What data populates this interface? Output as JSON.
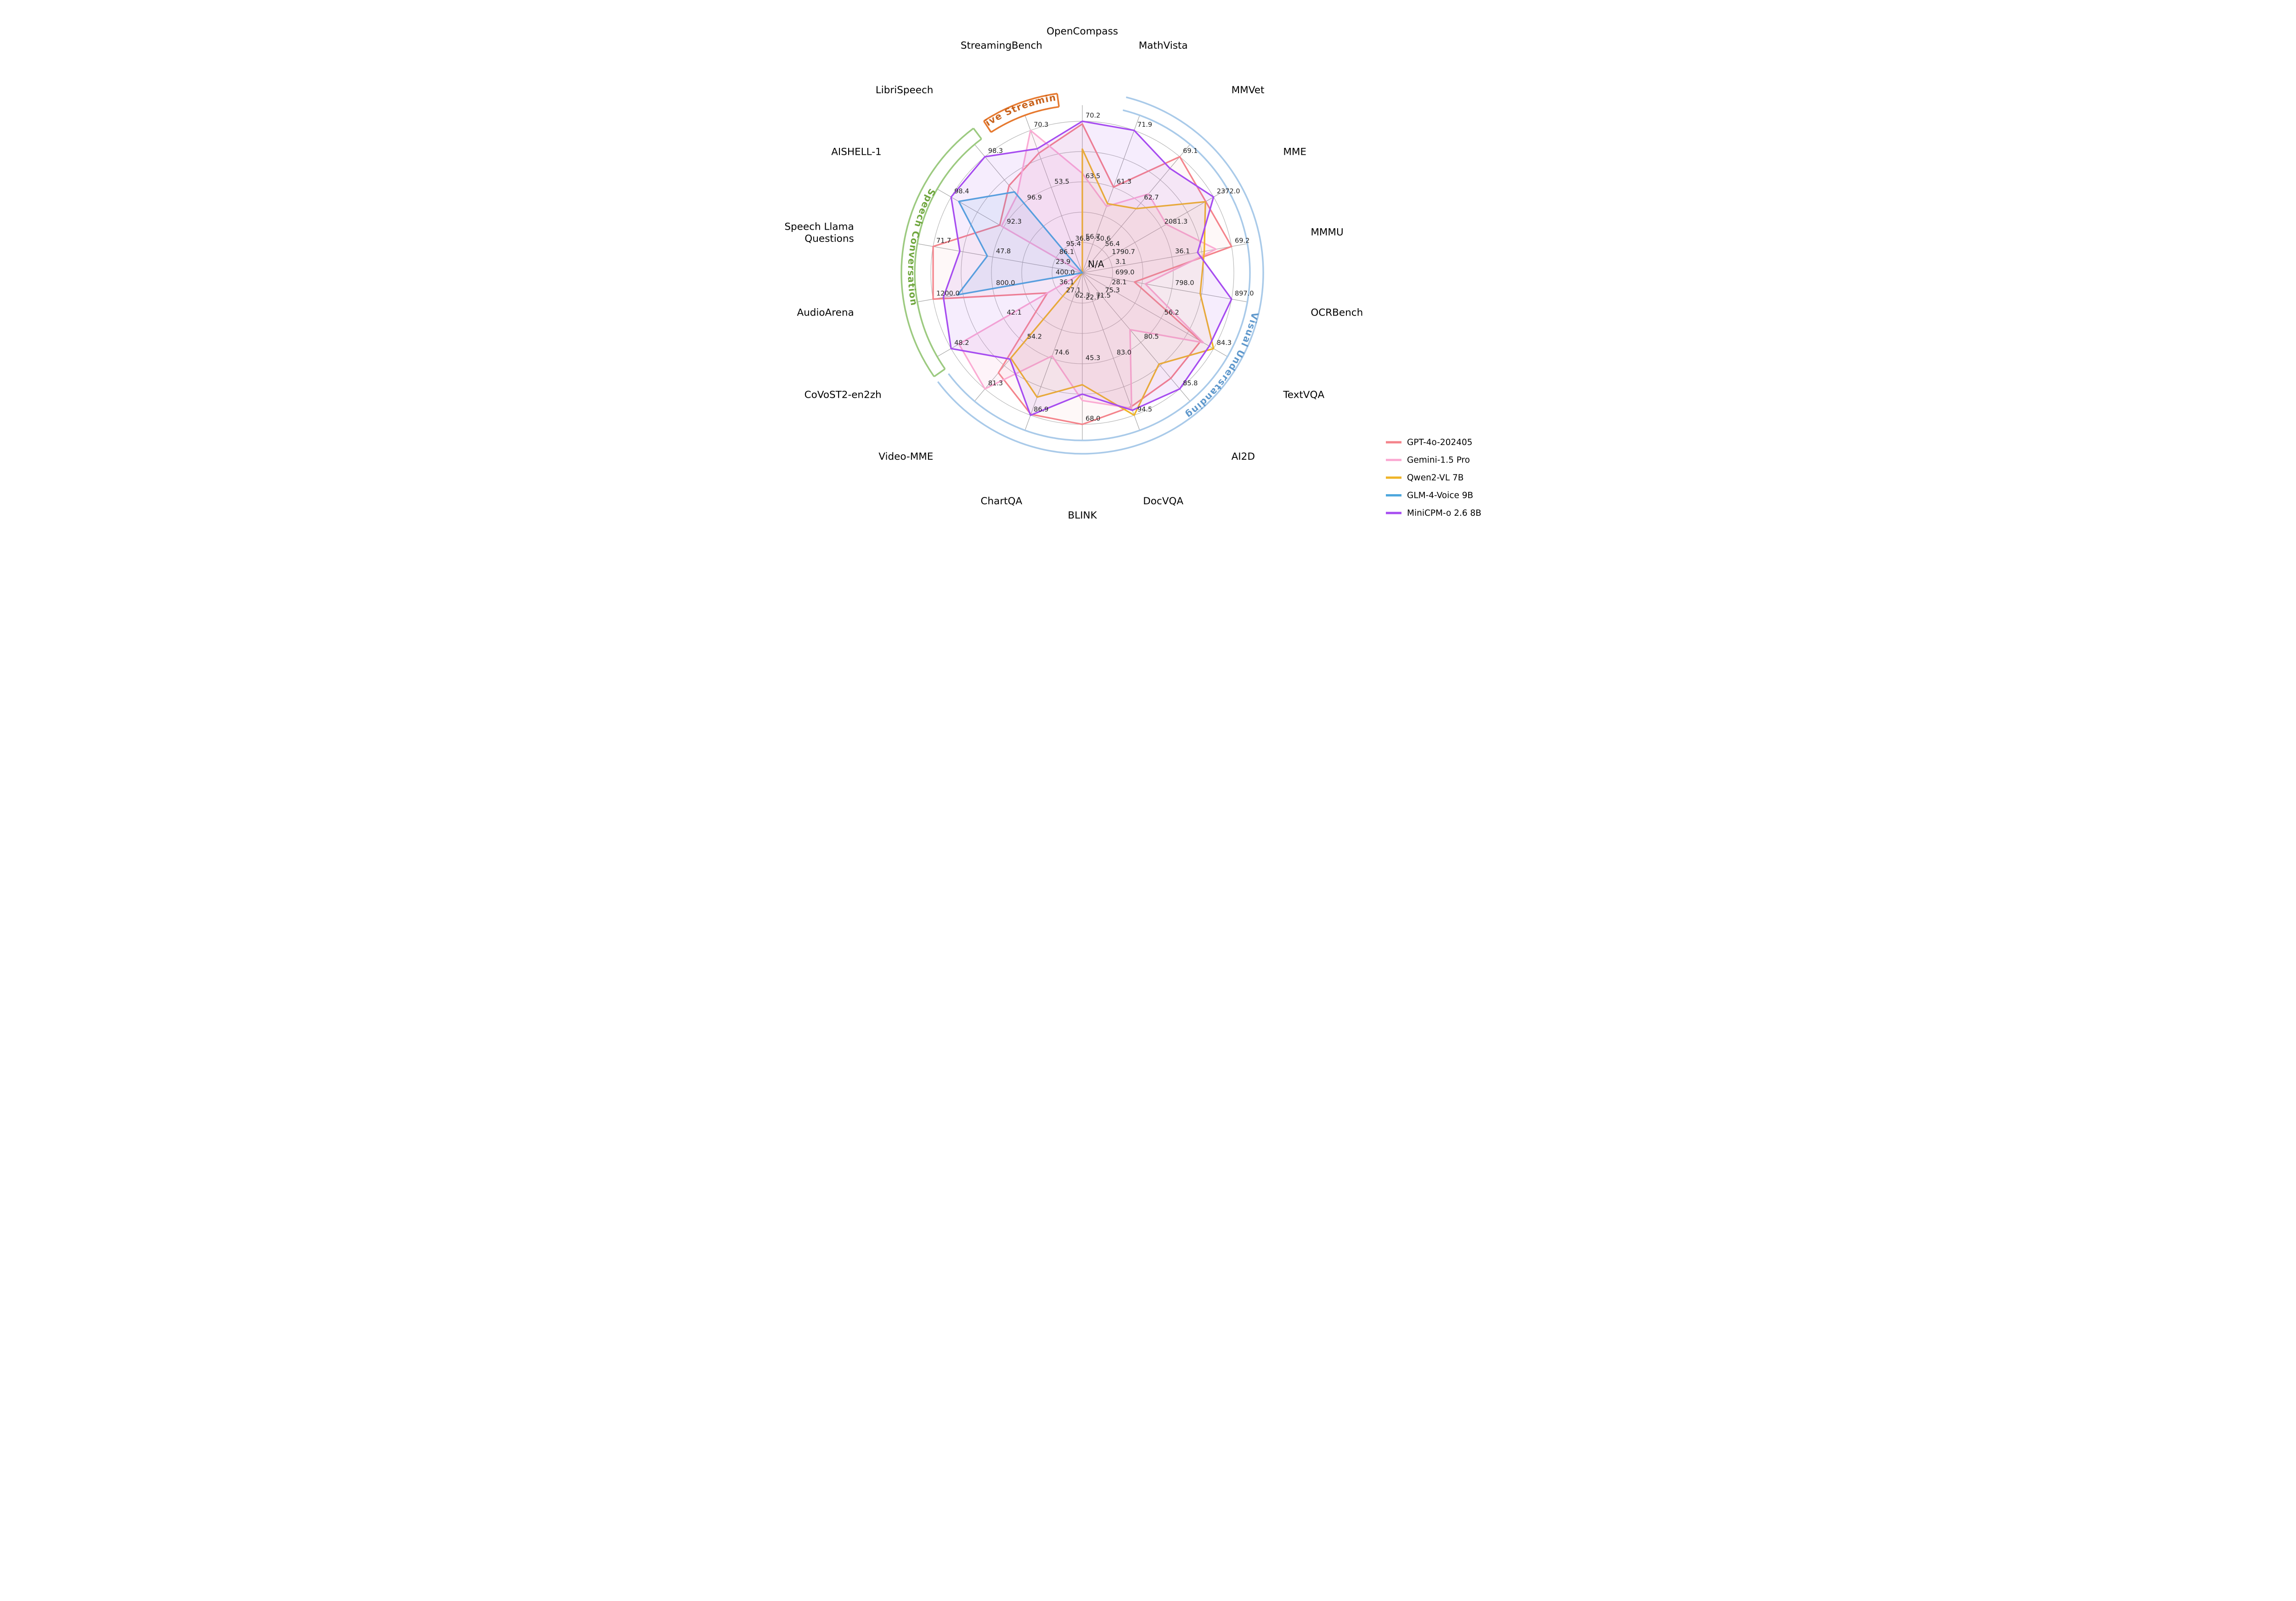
{
  "figure": {
    "background": "#ffffff",
    "center_na_label": "N/A"
  },
  "chart_data": {
    "type": "radar",
    "rings": 5,
    "label_rings": [
      5,
      3,
      1
    ],
    "axes": [
      {
        "name": "OpenCompass",
        "angle_deg": 0,
        "max": 70.2,
        "step_per_ring": 3.375,
        "ring_labels": [
          "70.2",
          "63.5",
          "56.7"
        ]
      },
      {
        "name": "MathVista",
        "angle_deg": 20,
        "max": 71.9,
        "step_per_ring": 5.325,
        "ring_labels": [
          "71.9",
          "61.3",
          "50.6"
        ]
      },
      {
        "name": "MMVet",
        "angle_deg": 40,
        "max": 69.1,
        "step_per_ring": 3.175,
        "ring_labels": [
          "69.1",
          "62.7",
          "56.4"
        ]
      },
      {
        "name": "MME",
        "angle_deg": 60,
        "max": 2372.0,
        "step_per_ring": 145.325,
        "ring_labels": [
          "2372.0",
          "2081.3",
          "1790.7"
        ]
      },
      {
        "name": "MMMU",
        "angle_deg": 80,
        "max": 69.2,
        "step_per_ring": 16.525,
        "ring_labels": [
          "69.2",
          "36.1",
          "3.1"
        ]
      },
      {
        "name": "OCRBench",
        "angle_deg": 100,
        "max": 897.0,
        "step_per_ring": 49.5,
        "ring_labels": [
          "897.0",
          "798.0",
          "699.0"
        ]
      },
      {
        "name": "TextVQA",
        "angle_deg": 120,
        "max": 84.3,
        "step_per_ring": 14.05,
        "ring_labels": [
          "84.3",
          "56.2",
          "28.1"
        ]
      },
      {
        "name": "AI2D",
        "angle_deg": 140,
        "max": 85.8,
        "step_per_ring": 2.625,
        "ring_labels": [
          "85.8",
          "80.5",
          "75.3"
        ]
      },
      {
        "name": "DocVQA",
        "angle_deg": 160,
        "max": 94.5,
        "step_per_ring": 5.75,
        "ring_labels": [
          "94.5",
          "83.0",
          "71.5"
        ]
      },
      {
        "name": "BLINK",
        "angle_deg": 180,
        "max": 68.0,
        "step_per_ring": 11.325,
        "ring_labels": [
          "68.0",
          "45.3",
          "22.7"
        ]
      },
      {
        "name": "ChartQA",
        "angle_deg": 200,
        "max": 86.9,
        "step_per_ring": 6.15,
        "ring_labels": [
          "86.9",
          "74.6",
          "62.3"
        ]
      },
      {
        "name": "Video-MME",
        "angle_deg": 220,
        "max": 81.3,
        "step_per_ring": 13.55,
        "ring_labels": [
          "81.3",
          "54.2",
          "27.1"
        ]
      },
      {
        "name": "CoVoST2-en2zh",
        "angle_deg": 240,
        "max": 48.2,
        "step_per_ring": 3.025,
        "ring_labels": [
          "48.2",
          "42.1",
          "36.1"
        ]
      },
      {
        "name": "AudioArena",
        "angle_deg": 260,
        "max": 1200.0,
        "step_per_ring": 200.0,
        "ring_labels": [
          "1200.0",
          "800.0",
          "400.0"
        ]
      },
      {
        "name": "Speech Llama Questions",
        "angle_deg": 280,
        "max": 71.7,
        "step_per_ring": 11.95,
        "ring_labels": [
          "71.7",
          "47.8",
          "23.9"
        ],
        "name_lines": [
          "Speech Llama",
          "Questions"
        ]
      },
      {
        "name": "AISHELL-1",
        "angle_deg": 300,
        "max": 98.4,
        "step_per_ring": 3.075,
        "ring_labels": [
          "98.4",
          "92.3",
          "86.1"
        ]
      },
      {
        "name": "LibriSpeech",
        "angle_deg": 320,
        "max": 98.3,
        "step_per_ring": 0.725,
        "ring_labels": [
          "98.3",
          "96.9",
          "95.4"
        ]
      },
      {
        "name": "StreamingBench",
        "angle_deg": 340,
        "max": 70.3,
        "step_per_ring": 8.375,
        "ring_labels": [
          "70.3",
          "53.5",
          "36.8"
        ]
      }
    ],
    "series": [
      {
        "name": "GPT-4o-202405",
        "color": "#F4838B",
        "fill_opacity": 0.06,
        "values": [
          69.9,
          61.3,
          69.1,
          2328.7,
          69.2,
          736.0,
          77.4,
          84.6,
          92.8,
          68.0,
          86.7,
          71.9,
          37.1,
          1200.0,
          71.7,
          92.7,
          97.4,
          63.6
        ]
      },
      {
        "name": "Gemini-1.5 Pro",
        "color": "#FBABD3",
        "fill_opacity": 0.14,
        "values": [
          64.4,
          57.7,
          64.0,
          2110.6,
          60.6,
          754.0,
          78.8,
          79.1,
          93.1,
          59.1,
          74.1,
          81.3,
          47.3,
          null,
          null,
          92.5,
          97.1,
          70.3
        ]
      },
      {
        "name": "Qwen2-VL 7B",
        "color": "#EFB427",
        "fill_opacity": 0.07,
        "values": [
          67.1,
          58.2,
          62.0,
          2326.8,
          54.1,
          845.0,
          84.3,
          83.0,
          94.5,
          53.2,
          83.0,
          63.3,
          null,
          null,
          null,
          null,
          null,
          null
        ]
      },
      {
        "name": "GLM-4-Voice 9B",
        "color": "#4EA7DD",
        "fill_opacity": 0.1,
        "values": [
          null,
          null,
          null,
          null,
          null,
          null,
          null,
          null,
          null,
          null,
          null,
          null,
          null,
          1035.0,
          50.0,
          97.5,
          97.2,
          null
        ]
      },
      {
        "name": "MiniCPM-o 2.6 8B",
        "color": "#A64CF0",
        "fill_opacity": 0.1,
        "values": [
          70.2,
          71.9,
          67.5,
          2372.0,
          50.4,
          897.0,
          82.0,
          85.8,
          93.5,
          56.7,
          86.9,
          63.9,
          48.2,
          1131.0,
          61.0,
          98.4,
          98.3,
          64.9
        ]
      }
    ],
    "na_label": "N/A",
    "groups": [
      {
        "label": "Visual Understanding",
        "arc_color": "#A9CAE9",
        "text_color": "#5F98CC",
        "start_deg": 14,
        "end_deg": 233,
        "style": "band",
        "direction": "cw"
      },
      {
        "label": "Speech Conversation",
        "arc_color": "#9CCA80",
        "text_color": "#6FA63E",
        "start_deg": 235,
        "end_deg": 323,
        "style": "box",
        "direction": "ccw"
      },
      {
        "label": "Live Streaming",
        "arc_color": "#E6792F",
        "text_color": "#C8621C",
        "start_deg": 327,
        "end_deg": 352,
        "style": "box",
        "direction": "cw"
      }
    ],
    "legend": {
      "entries": [
        "GPT-4o-202405",
        "Gemini-1.5 Pro",
        "Qwen2-VL 7B",
        "GLM-4-Voice 9B",
        "MiniCPM-o 2.6 8B"
      ]
    },
    "grid": {
      "ring_color": "#b5b5b5",
      "axis_color": "#a3a3a3",
      "ring_label_color": "#202020",
      "axis_name_color": "#000000"
    }
  }
}
